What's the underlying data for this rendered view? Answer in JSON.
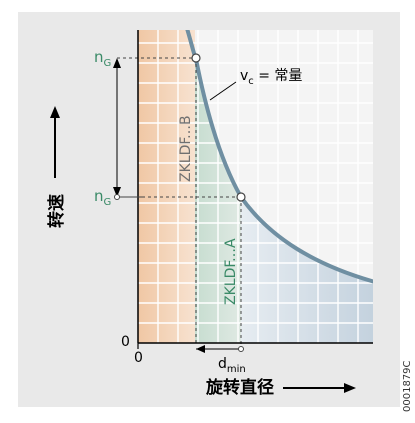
{
  "diagram": {
    "y_axis_label": "转速",
    "x_axis_label": "旋转直径",
    "origin_y": "0",
    "origin_x": "0",
    "ng_upper": {
      "base": "n",
      "sub": "G"
    },
    "ng_lower": {
      "base": "n",
      "sub": "G"
    },
    "curve_label": {
      "base": "v",
      "sub": "c",
      "rest": " = 常量"
    },
    "band_b_label": "ZKLDF.‥B",
    "band_a_label": "ZKLDF.‥A",
    "dmin_label": {
      "base": "d",
      "sub": "min"
    },
    "figure_id": "0001879C",
    "colors": {
      "frame_bg": "#e8e8e8",
      "grid": "#ffffff",
      "orange": "#f0c7a4",
      "green": "#cfe1d6",
      "blue": "#cdd9e3",
      "curve": "#6f8fa2",
      "text_green": "#3a8a67",
      "text_gray": "#707070"
    }
  }
}
